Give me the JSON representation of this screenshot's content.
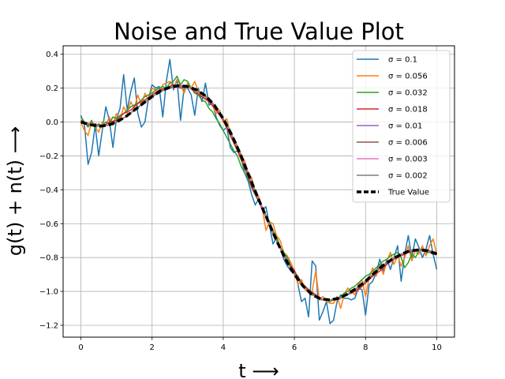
{
  "chart_data": {
    "type": "line",
    "title": "Noise and True Value Plot",
    "xlabel": "t  ⟶",
    "ylabel": "g(t) + n(t)  ⟶",
    "xlim": [
      -0.5,
      10.5
    ],
    "ylim": [
      -1.27,
      0.45
    ],
    "xticks": [
      0,
      2,
      4,
      6,
      8,
      10
    ],
    "xtick_labels": [
      "0",
      "2",
      "4",
      "6",
      "8",
      "10"
    ],
    "yticks": [
      -1.2,
      -1.0,
      -0.8,
      -0.6,
      -0.4,
      -0.2,
      0.0,
      0.2,
      0.4
    ],
    "ytick_labels": [
      "−1.2",
      "−1.0",
      "−0.8",
      "−0.6",
      "−0.4",
      "−0.2",
      "0.0",
      "0.2",
      "0.4"
    ],
    "grid": true,
    "legend_position": "top-right",
    "true_value": {
      "name": "True Value",
      "color": "#000000",
      "x": [
        0,
        0.25,
        0.5,
        0.75,
        1,
        1.25,
        1.5,
        1.75,
        2,
        2.25,
        2.5,
        2.75,
        3,
        3.25,
        3.5,
        3.75,
        4,
        4.25,
        4.5,
        4.75,
        5,
        5.25,
        5.5,
        5.75,
        6,
        6.25,
        6.5,
        6.75,
        7,
        7.25,
        7.5,
        7.75,
        8,
        8.25,
        8.5,
        8.75,
        9,
        9.25,
        9.5,
        9.75,
        10
      ],
      "y": [
        0.0,
        -0.015,
        -0.025,
        -0.02,
        0.0,
        0.03,
        0.07,
        0.11,
        0.15,
        0.185,
        0.205,
        0.215,
        0.21,
        0.19,
        0.155,
        0.1,
        0.02,
        -0.08,
        -0.2,
        -0.33,
        -0.46,
        -0.58,
        -0.7,
        -0.81,
        -0.9,
        -0.97,
        -1.02,
        -1.045,
        -1.05,
        -1.04,
        -1.015,
        -0.98,
        -0.94,
        -0.89,
        -0.845,
        -0.81,
        -0.78,
        -0.76,
        -0.755,
        -0.76,
        -0.78
      ]
    },
    "series": [
      {
        "name": "σ = 0.1",
        "color": "#1f77b4",
        "x": [
          0,
          0.1,
          0.2,
          0.3,
          0.4,
          0.5,
          0.6,
          0.7,
          0.8,
          0.9,
          1.0,
          1.1,
          1.2,
          1.3,
          1.4,
          1.5,
          1.6,
          1.7,
          1.8,
          1.9,
          2.0,
          2.1,
          2.2,
          2.3,
          2.4,
          2.5,
          2.6,
          2.7,
          2.8,
          2.9,
          3.0,
          3.1,
          3.2,
          3.3,
          3.4,
          3.5,
          3.6,
          3.7,
          3.8,
          3.9,
          4.0,
          4.1,
          4.2,
          4.3,
          4.4,
          4.5,
          4.6,
          4.7,
          4.8,
          4.9,
          5.0,
          5.1,
          5.2,
          5.3,
          5.4,
          5.5,
          5.6,
          5.7,
          5.8,
          5.9,
          6.0,
          6.1,
          6.2,
          6.3,
          6.4,
          6.5,
          6.6,
          6.7,
          6.8,
          6.9,
          7.0,
          7.1,
          7.2,
          7.3,
          7.4,
          7.5,
          7.6,
          7.7,
          7.8,
          7.9,
          8.0,
          8.1,
          8.2,
          8.3,
          8.4,
          8.5,
          8.6,
          8.7,
          8.8,
          8.9,
          9.0,
          9.1,
          9.2,
          9.3,
          9.4,
          9.5,
          9.6,
          9.7,
          9.8,
          9.9,
          10.0
        ],
        "y": [
          0.04,
          -0.02,
          -0.25,
          -0.18,
          -0.02,
          -0.2,
          -0.05,
          0.09,
          0.01,
          -0.15,
          0.02,
          0.08,
          0.28,
          0.07,
          0.18,
          0.26,
          0.05,
          -0.03,
          0.0,
          0.14,
          0.22,
          0.2,
          0.21,
          0.03,
          0.24,
          0.37,
          0.19,
          0.25,
          0.01,
          0.2,
          0.2,
          0.16,
          0.04,
          0.2,
          0.12,
          0.23,
          0.1,
          0.11,
          0.03,
          -0.02,
          -0.05,
          -0.03,
          -0.15,
          -0.18,
          -0.17,
          -0.21,
          -0.3,
          -0.35,
          -0.43,
          -0.49,
          -0.45,
          -0.52,
          -0.5,
          -0.61,
          -0.72,
          -0.68,
          -0.74,
          -0.81,
          -0.85,
          -0.88,
          -0.87,
          -0.96,
          -1.06,
          -1.04,
          -1.15,
          -0.82,
          -0.85,
          -1.17,
          -1.12,
          -1.06,
          -1.19,
          -1.17,
          -1.06,
          -1.02,
          -1.04,
          -1.04,
          -1.05,
          -1.04,
          -0.98,
          -0.99,
          -1.14,
          -0.96,
          -0.94,
          -0.89,
          -0.81,
          -0.88,
          -0.81,
          -0.87,
          -0.8,
          -0.73,
          -0.94,
          -0.78,
          -0.67,
          -0.8,
          -0.69,
          -0.74,
          -0.8,
          -0.75,
          -0.67,
          -0.78,
          -0.87
        ]
      },
      {
        "name": "σ = 0.056",
        "color": "#ff7f0e",
        "x": [
          0,
          0.1,
          0.2,
          0.3,
          0.4,
          0.5,
          0.6,
          0.7,
          0.8,
          0.9,
          1.0,
          1.1,
          1.2,
          1.3,
          1.4,
          1.5,
          1.6,
          1.7,
          1.8,
          1.9,
          2.0,
          2.1,
          2.2,
          2.3,
          2.4,
          2.5,
          2.6,
          2.7,
          2.8,
          2.9,
          3.0,
          3.1,
          3.2,
          3.3,
          3.4,
          3.5,
          3.6,
          3.7,
          3.8,
          3.9,
          4.0,
          4.1,
          4.2,
          4.3,
          4.4,
          4.5,
          4.6,
          4.7,
          4.8,
          4.9,
          5.0,
          5.1,
          5.2,
          5.3,
          5.4,
          5.5,
          5.6,
          5.7,
          5.8,
          5.9,
          6.0,
          6.1,
          6.2,
          6.3,
          6.4,
          6.5,
          6.6,
          6.7,
          6.8,
          6.9,
          7.0,
          7.1,
          7.2,
          7.3,
          7.4,
          7.5,
          7.6,
          7.7,
          7.8,
          7.9,
          8.0,
          8.1,
          8.2,
          8.3,
          8.4,
          8.5,
          8.6,
          8.7,
          8.8,
          8.9,
          9.0,
          9.1,
          9.2,
          9.3,
          9.4,
          9.5,
          9.6,
          9.7,
          9.8,
          9.9,
          10.0
        ],
        "y": [
          0.0,
          -0.05,
          -0.08,
          0.0,
          -0.03,
          -0.06,
          0.0,
          -0.02,
          0.03,
          -0.02,
          0.05,
          0.01,
          0.09,
          0.05,
          0.12,
          0.08,
          0.16,
          0.1,
          0.17,
          0.13,
          0.2,
          0.19,
          0.17,
          0.22,
          0.23,
          0.24,
          0.2,
          0.25,
          0.22,
          0.17,
          0.23,
          0.2,
          0.24,
          0.18,
          0.15,
          0.14,
          0.12,
          0.1,
          0.05,
          0.07,
          0.0,
          0.02,
          -0.07,
          -0.1,
          -0.14,
          -0.19,
          -0.23,
          -0.3,
          -0.33,
          -0.41,
          -0.44,
          -0.51,
          -0.64,
          -0.59,
          -0.6,
          -0.67,
          -0.7,
          -0.77,
          -0.79,
          -0.83,
          -0.88,
          -0.96,
          -0.93,
          -0.99,
          -1.0,
          -1.0,
          -0.88,
          -1.05,
          -1.03,
          -1.06,
          -1.07,
          -1.07,
          -1.03,
          -1.1,
          -1.02,
          -0.98,
          -1.0,
          -1.02,
          -0.96,
          -0.93,
          -1.03,
          -0.92,
          -0.86,
          -0.91,
          -0.84,
          -0.9,
          -0.82,
          -0.77,
          -0.84,
          -0.79,
          -0.85,
          -0.8,
          -0.73,
          -0.82,
          -0.76,
          -0.78,
          -0.73,
          -0.79,
          -0.73,
          -0.69,
          -0.78
        ]
      },
      {
        "name": "σ = 0.032",
        "color": "#2ca02c",
        "x": [
          0,
          0.1,
          0.2,
          0.3,
          0.4,
          0.5,
          0.6,
          0.7,
          0.8,
          0.9,
          1.0,
          1.1,
          1.2,
          1.3,
          1.4,
          1.5,
          1.6,
          1.7,
          1.8,
          1.9,
          2.0,
          2.1,
          2.2,
          2.3,
          2.4,
          2.5,
          2.6,
          2.7,
          2.8,
          2.9,
          3.0,
          3.1,
          3.2,
          3.3,
          3.4,
          3.5,
          3.6,
          3.7,
          3.8,
          3.9,
          4.0,
          4.1,
          4.2,
          4.3,
          4.4,
          4.5,
          4.6,
          4.7,
          4.8,
          4.9,
          5.0,
          5.1,
          5.2,
          5.3,
          5.4,
          5.5,
          5.6,
          5.7,
          5.8,
          5.9,
          6.0,
          6.1,
          6.2,
          6.3,
          6.4,
          6.5,
          6.6,
          6.7,
          6.8,
          6.9,
          7.0,
          7.1,
          7.2,
          7.3,
          7.4,
          7.5,
          7.6,
          7.7,
          7.8,
          7.9,
          8.0,
          8.1,
          8.2,
          8.3,
          8.4,
          8.5,
          8.6,
          8.7,
          8.8,
          8.9,
          9.0,
          9.1,
          9.2,
          9.3,
          9.4,
          9.5,
          9.6,
          9.7,
          9.8,
          9.9,
          10.0
        ],
        "y": [
          0.03,
          0.0,
          -0.03,
          0.01,
          -0.04,
          -0.01,
          -0.03,
          0.0,
          -0.01,
          0.03,
          0.02,
          0.04,
          0.05,
          0.07,
          0.09,
          0.1,
          0.11,
          0.13,
          0.15,
          0.16,
          0.17,
          0.19,
          0.2,
          0.21,
          0.2,
          0.23,
          0.24,
          0.27,
          0.22,
          0.25,
          0.24,
          0.2,
          0.17,
          0.16,
          0.13,
          0.12,
          0.08,
          0.06,
          0.02,
          -0.01,
          -0.05,
          -0.09,
          -0.13,
          -0.17,
          -0.2,
          -0.26,
          -0.3,
          -0.33,
          -0.39,
          -0.43,
          -0.47,
          -0.51,
          -0.55,
          -0.59,
          -0.64,
          -0.68,
          -0.74,
          -0.77,
          -0.8,
          -0.85,
          -0.89,
          -0.91,
          -0.95,
          -0.97,
          -0.99,
          -1.01,
          -1.03,
          -1.04,
          -1.05,
          -1.05,
          -1.06,
          -1.05,
          -1.05,
          -1.03,
          -1.01,
          -1.0,
          -0.98,
          -0.97,
          -0.95,
          -0.93,
          -0.91,
          -0.9,
          -0.88,
          -0.86,
          -0.84,
          -0.82,
          -0.81,
          -0.79,
          -0.78,
          -0.77,
          -0.8,
          -0.86,
          -0.83,
          -0.78,
          -0.8,
          -0.76,
          -0.75,
          -0.77,
          -0.77,
          -0.78,
          -0.77
        ]
      },
      {
        "name": "σ = 0.018",
        "color": "#d62728",
        "x": [
          0,
          0.2,
          0.4,
          0.6,
          0.8,
          1.0,
          1.2,
          1.4,
          1.6,
          1.8,
          2.0,
          2.2,
          2.4,
          2.6,
          2.8,
          3.0,
          3.2,
          3.4,
          3.6,
          3.8,
          4.0,
          4.2,
          4.4,
          4.6,
          4.8,
          5.0,
          5.2,
          5.4,
          5.6,
          5.8,
          6.0,
          6.2,
          6.4,
          6.6,
          6.8,
          7.0,
          7.2,
          7.4,
          7.6,
          7.8,
          8.0,
          8.2,
          8.4,
          8.6,
          8.8,
          9.0,
          9.2,
          9.4,
          9.6,
          9.8,
          10.0
        ],
        "y": [
          0.01,
          -0.02,
          -0.01,
          -0.03,
          0.0,
          0.01,
          0.05,
          0.07,
          0.11,
          0.13,
          0.16,
          0.19,
          0.2,
          0.22,
          0.2,
          0.21,
          0.18,
          0.15,
          0.12,
          0.07,
          0.01,
          -0.08,
          -0.17,
          -0.27,
          -0.38,
          -0.47,
          -0.56,
          -0.66,
          -0.74,
          -0.82,
          -0.88,
          -0.95,
          -0.99,
          -1.02,
          -1.05,
          -1.05,
          -1.05,
          -1.03,
          -1.01,
          -0.99,
          -0.95,
          -0.91,
          -0.88,
          -0.84,
          -0.81,
          -0.79,
          -0.77,
          -0.76,
          -0.75,
          -0.76,
          -0.77
        ]
      },
      {
        "name": "σ = 0.01",
        "color": "#9467bd",
        "x": [
          0,
          0.25,
          0.5,
          0.75,
          1,
          1.25,
          1.5,
          1.75,
          2,
          2.25,
          2.5,
          2.75,
          3,
          3.25,
          3.5,
          3.75,
          4,
          4.25,
          4.5,
          4.75,
          5,
          5.25,
          5.5,
          5.75,
          6,
          6.25,
          6.5,
          6.75,
          7,
          7.25,
          7.5,
          7.75,
          8,
          8.25,
          8.5,
          8.75,
          9,
          9.25,
          9.5,
          9.75,
          10
        ],
        "y": [
          0.0,
          -0.01,
          -0.02,
          -0.02,
          0.0,
          0.03,
          0.07,
          0.11,
          0.15,
          0.18,
          0.2,
          0.21,
          0.21,
          0.19,
          0.15,
          0.1,
          0.02,
          -0.08,
          -0.2,
          -0.33,
          -0.46,
          -0.58,
          -0.7,
          -0.81,
          -0.9,
          -0.97,
          -1.02,
          -1.05,
          -1.05,
          -1.04,
          -1.02,
          -0.98,
          -0.94,
          -0.89,
          -0.85,
          -0.81,
          -0.78,
          -0.76,
          -0.75,
          -0.76,
          -0.78
        ]
      },
      {
        "name": "σ = 0.006",
        "color": "#8c564b",
        "x": [
          0,
          0.25,
          0.5,
          0.75,
          1,
          1.25,
          1.5,
          1.75,
          2,
          2.25,
          2.5,
          2.75,
          3,
          3.25,
          3.5,
          3.75,
          4,
          4.25,
          4.5,
          4.75,
          5,
          5.25,
          5.5,
          5.75,
          6,
          6.25,
          6.5,
          6.75,
          7,
          7.25,
          7.5,
          7.75,
          8,
          8.25,
          8.5,
          8.75,
          9,
          9.25,
          9.5,
          9.75,
          10
        ],
        "y": [
          0.0,
          -0.015,
          -0.025,
          -0.02,
          0.0,
          0.03,
          0.07,
          0.11,
          0.15,
          0.185,
          0.205,
          0.215,
          0.21,
          0.19,
          0.155,
          0.1,
          0.02,
          -0.08,
          -0.2,
          -0.33,
          -0.46,
          -0.58,
          -0.7,
          -0.81,
          -0.9,
          -0.97,
          -1.02,
          -1.045,
          -1.05,
          -1.04,
          -1.015,
          -0.98,
          -0.94,
          -0.89,
          -0.845,
          -0.81,
          -0.78,
          -0.76,
          -0.755,
          -0.76,
          -0.78
        ]
      },
      {
        "name": "σ = 0.003",
        "color": "#e377c2",
        "x": [
          0,
          0.25,
          0.5,
          0.75,
          1,
          1.25,
          1.5,
          1.75,
          2,
          2.25,
          2.5,
          2.75,
          3,
          3.25,
          3.5,
          3.75,
          4,
          4.25,
          4.5,
          4.75,
          5,
          5.25,
          5.5,
          5.75,
          6,
          6.25,
          6.5,
          6.75,
          7,
          7.25,
          7.5,
          7.75,
          8,
          8.25,
          8.5,
          8.75,
          9,
          9.25,
          9.5,
          9.75,
          10
        ],
        "y": [
          0.0,
          -0.015,
          -0.025,
          -0.02,
          0.0,
          0.03,
          0.07,
          0.11,
          0.15,
          0.185,
          0.205,
          0.215,
          0.21,
          0.19,
          0.155,
          0.1,
          0.02,
          -0.08,
          -0.2,
          -0.33,
          -0.46,
          -0.58,
          -0.7,
          -0.81,
          -0.9,
          -0.97,
          -1.02,
          -1.045,
          -1.05,
          -1.04,
          -1.015,
          -0.98,
          -0.94,
          -0.89,
          -0.845,
          -0.81,
          -0.78,
          -0.76,
          -0.755,
          -0.76,
          -0.78
        ]
      },
      {
        "name": "σ = 0.002",
        "color": "#7f7f7f",
        "x": [
          0,
          0.25,
          0.5,
          0.75,
          1,
          1.25,
          1.5,
          1.75,
          2,
          2.25,
          2.5,
          2.75,
          3,
          3.25,
          3.5,
          3.75,
          4,
          4.25,
          4.5,
          4.75,
          5,
          5.25,
          5.5,
          5.75,
          6,
          6.25,
          6.5,
          6.75,
          7,
          7.25,
          7.5,
          7.75,
          8,
          8.25,
          8.5,
          8.75,
          9,
          9.25,
          9.5,
          9.75,
          10
        ],
        "y": [
          0.0,
          -0.015,
          -0.025,
          -0.02,
          0.0,
          0.03,
          0.07,
          0.11,
          0.15,
          0.185,
          0.205,
          0.215,
          0.21,
          0.19,
          0.155,
          0.1,
          0.02,
          -0.08,
          -0.2,
          -0.33,
          -0.46,
          -0.58,
          -0.7,
          -0.81,
          -0.9,
          -0.97,
          -1.02,
          -1.045,
          -1.05,
          -1.04,
          -1.015,
          -0.98,
          -0.94,
          -0.89,
          -0.845,
          -0.81,
          -0.78,
          -0.76,
          -0.755,
          -0.76,
          -0.78
        ]
      }
    ]
  }
}
